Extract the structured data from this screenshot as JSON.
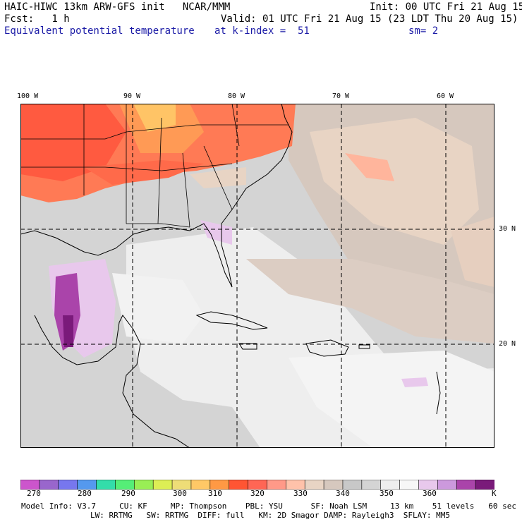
{
  "header": {
    "model": "HAIC-HIWC 13km ARW-GFS init   NCAR/MMM",
    "init": "Init: 00 UTC Fri 21 Aug 15",
    "fcst": "Fcst:   1 h",
    "valid": "Valid: 01 UTC Fri 21 Aug 15 (23 LDT Thu 20 Aug 15)",
    "field": "Equivalent potential temperature",
    "kindex": "at k-index =  51",
    "sm": "sm= 2"
  },
  "lon_labels": [
    "100 W",
    "90 W",
    "80 W",
    "70 W",
    "60 W"
  ],
  "lat_labels": [
    "30 N",
    "20 N"
  ],
  "colorbar": {
    "unit": "K",
    "labels": [
      "270",
      "280",
      "290",
      "300",
      "310",
      "320",
      "330",
      "340",
      "350",
      "360"
    ],
    "colors": [
      "#cc55cc",
      "#9966cc",
      "#7777ee",
      "#5599ee",
      "#33ddaa",
      "#55ee77",
      "#99ee55",
      "#ddee55",
      "#eedd77",
      "#ffc866",
      "#ff9944",
      "#ff5533",
      "#ff6655",
      "#ff9988",
      "#ffc2aa",
      "#e8d4c4",
      "#d6c8be",
      "#c8c8c8",
      "#d4d4d4",
      "#eeeeee",
      "#f7f7f7",
      "#e8c8ec",
      "#cc99dd",
      "#aa44aa",
      "#7a1a7a"
    ]
  },
  "model_info": {
    "line1": "Model Info: V3.7     CU: KF     MP: Thompson    PBL: YSU      SF: Noah LSM     13 km    51 levels   60 sec",
    "line2": "LW: RRTMG   SW: RRTMG  DIFF: full   KM: 2D Smagor DAMP: Rayleigh3  SFLAY: MM5"
  }
}
